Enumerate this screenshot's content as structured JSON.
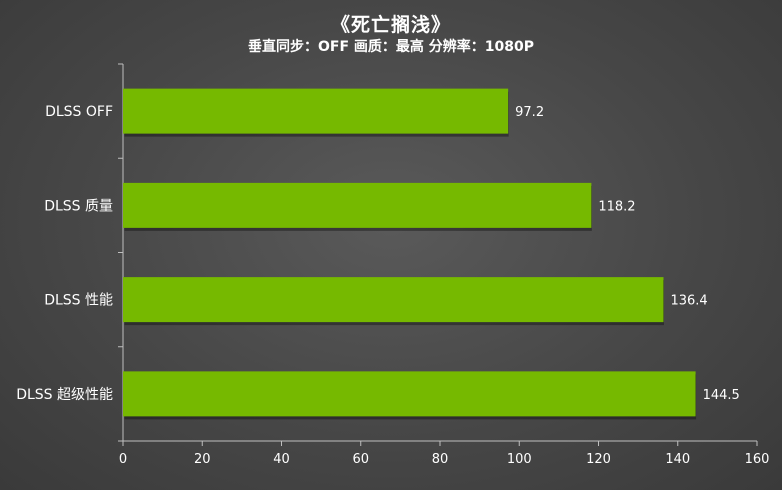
{
  "chart_data": {
    "type": "bar",
    "orientation": "horizontal",
    "title": "《死亡搁浅》",
    "subtitle": "垂直同步：OFF 画质：最高 分辨率：1080P",
    "categories": [
      "DLSS OFF",
      "DLSS 质量",
      "DLSS 性能",
      "DLSS 超级性能"
    ],
    "values": [
      97.2,
      118.2,
      136.4,
      144.5
    ],
    "value_labels": [
      "97.2",
      "118.2",
      "136.4",
      "144.5"
    ],
    "xlim": [
      0,
      160
    ],
    "xticks": [
      0,
      20,
      40,
      60,
      80,
      100,
      120,
      140,
      160
    ],
    "xlabel": "",
    "ylabel": "",
    "grid": false,
    "bar_color": "#76b900"
  }
}
